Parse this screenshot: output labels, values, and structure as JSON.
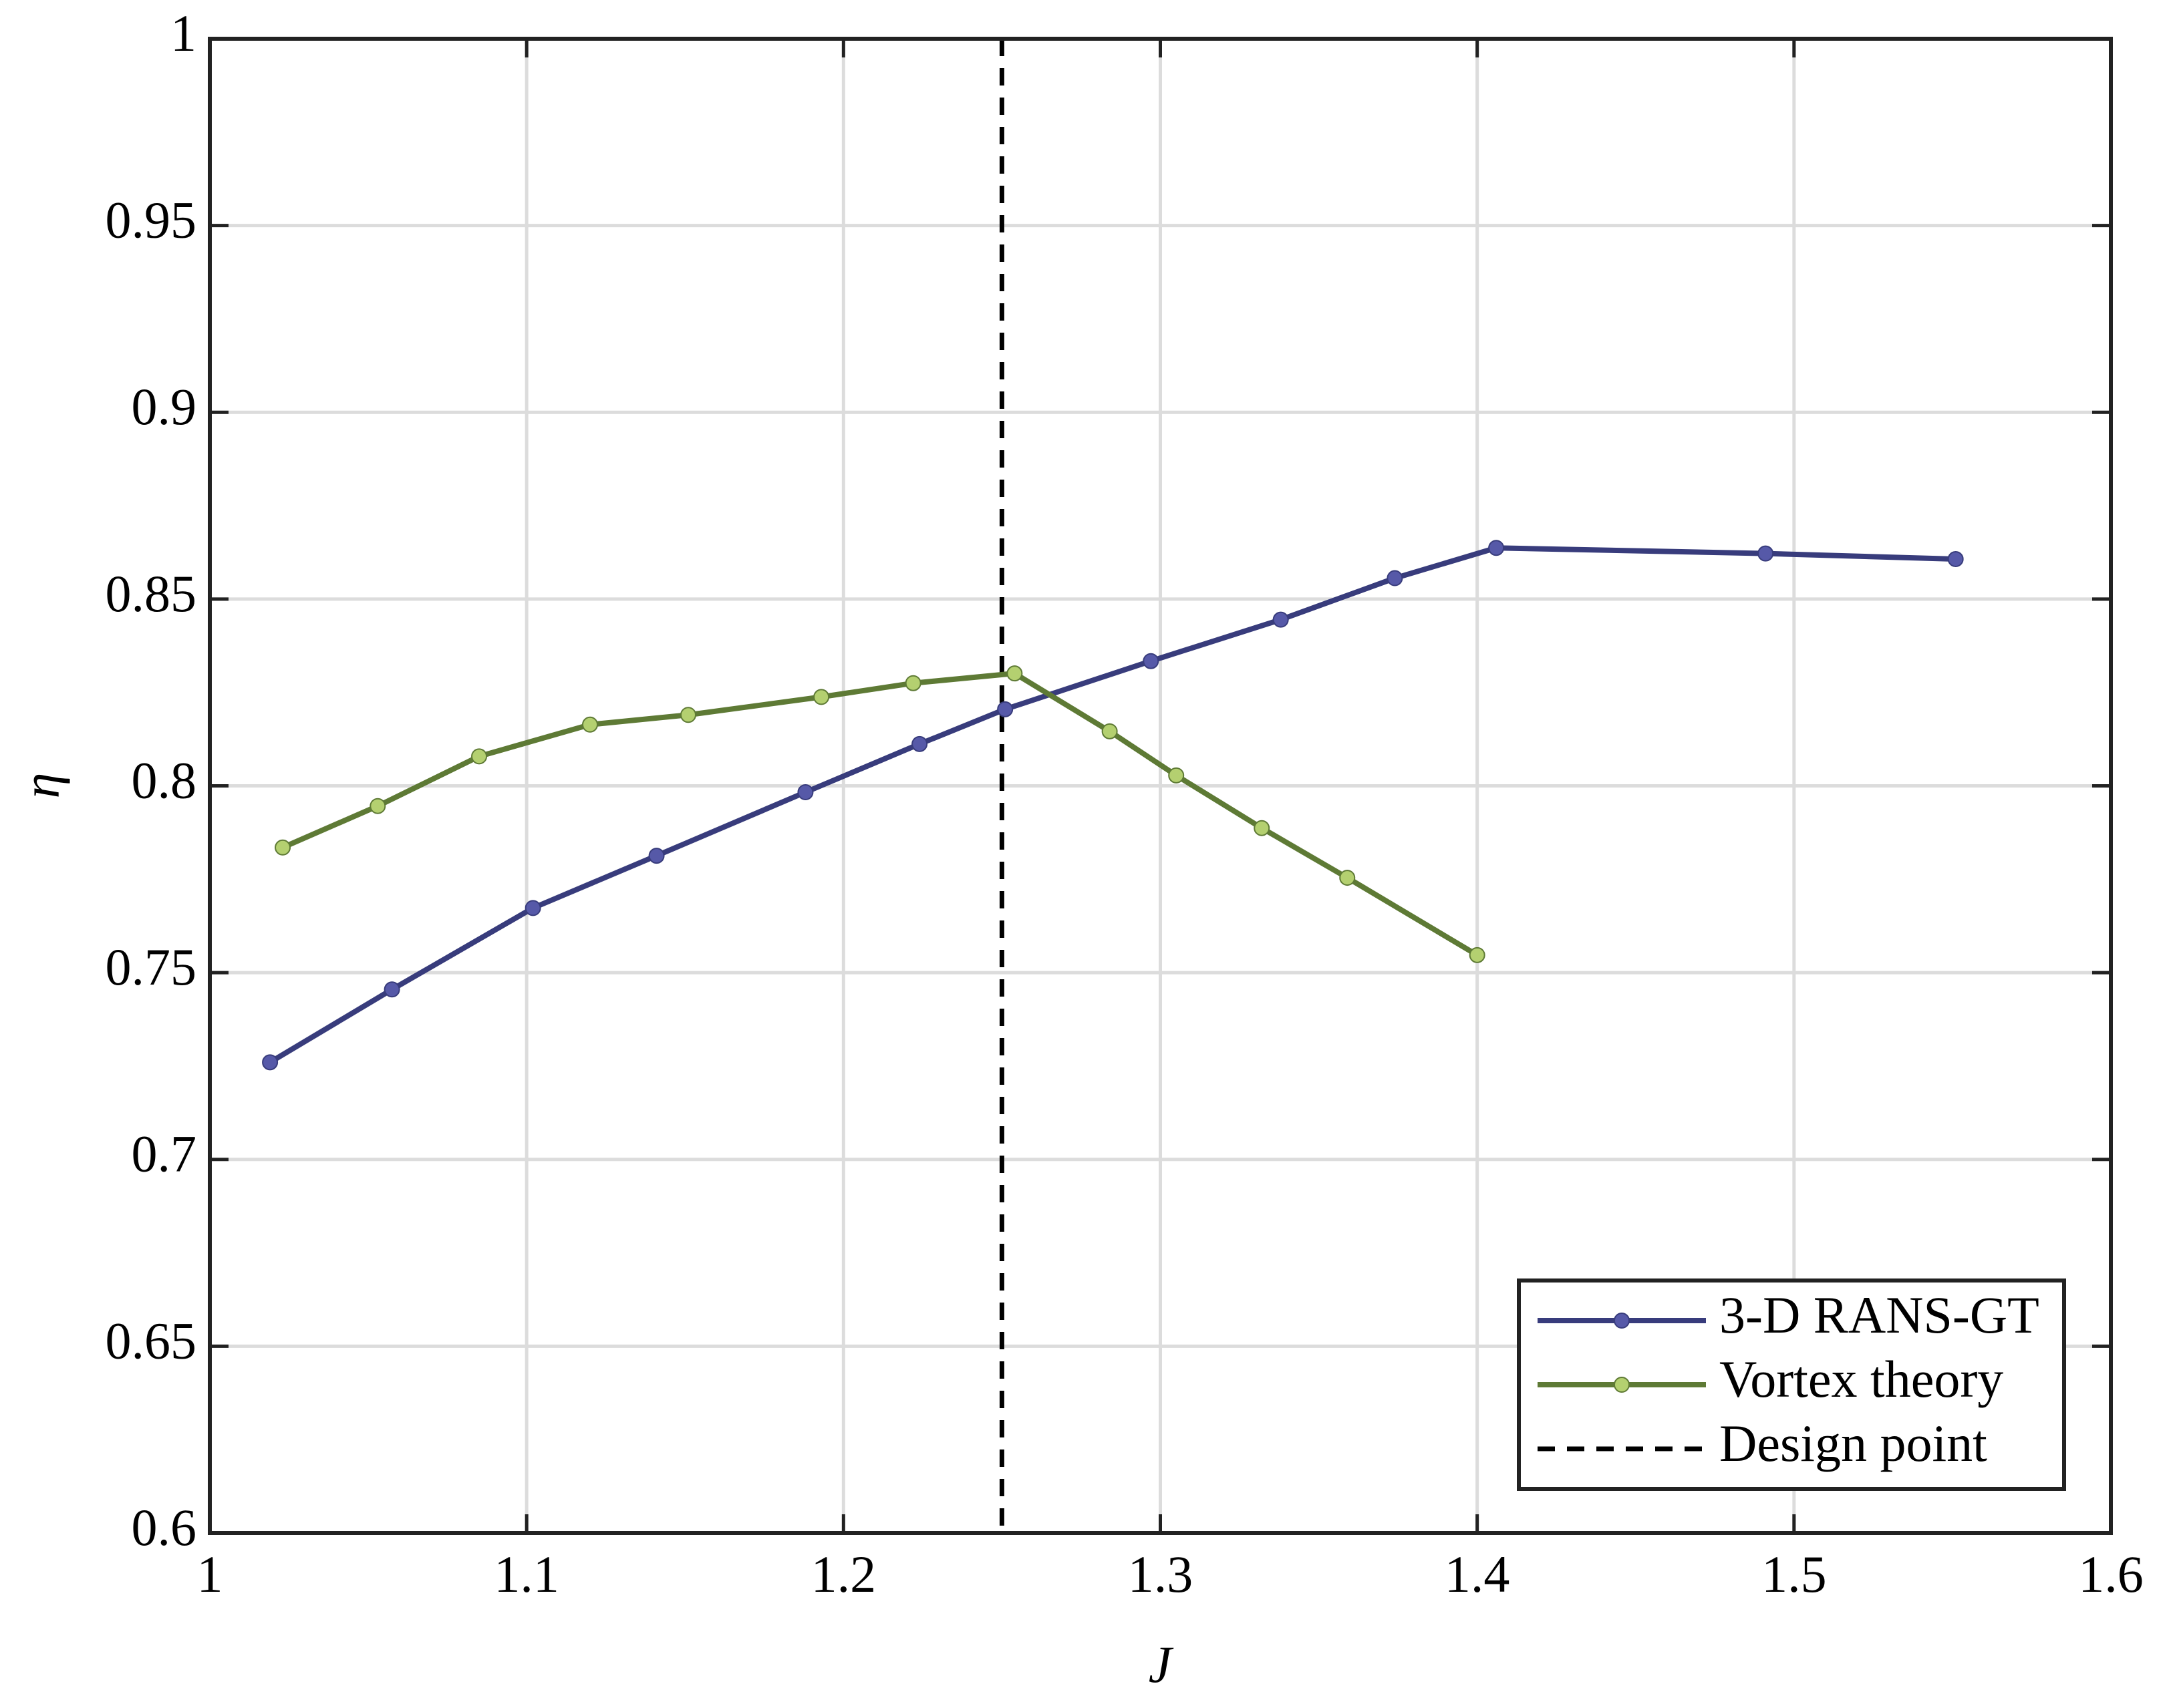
{
  "chart_data": {
    "type": "line",
    "xlabel": "J",
    "ylabel": "η",
    "xlim": [
      1,
      1.6
    ],
    "ylim": [
      0.6,
      1
    ],
    "xticks": [
      1,
      1.1,
      1.2,
      1.3,
      1.4,
      1.5,
      1.6
    ],
    "yticks": [
      0.6,
      0.65,
      0.7,
      0.75,
      0.8,
      0.85,
      0.9,
      0.95,
      1
    ],
    "grid": true,
    "legend": "lower right",
    "series": [
      {
        "name": "3-D RANS-GT",
        "color": "#383c7c",
        "marker_color": "#5659a8",
        "x": [
          1.019,
          1.0575,
          1.102,
          1.141,
          1.188,
          1.224,
          1.251,
          1.297,
          1.338,
          1.374,
          1.406,
          1.491,
          1.551
        ],
        "values": [
          0.726,
          0.7455,
          0.7673,
          0.7813,
          0.7983,
          0.8112,
          0.8205,
          0.8334,
          0.8445,
          0.8556,
          0.8637,
          0.8622,
          0.8607
        ]
      },
      {
        "name": "Vortex theory",
        "color": "#5e7a35",
        "marker_color": "#b4d070",
        "x": [
          1.023,
          1.053,
          1.085,
          1.12,
          1.151,
          1.193,
          1.222,
          1.254,
          1.284,
          1.305,
          1.332,
          1.359,
          1.4
        ],
        "values": [
          0.7835,
          0.7946,
          0.8079,
          0.8164,
          0.819,
          0.8238,
          0.8275,
          0.8301,
          0.8146,
          0.8028,
          0.7887,
          0.7754,
          0.7547
        ]
      }
    ],
    "reference_line": {
      "name": "Design point",
      "x": 1.25,
      "color": "#000000",
      "style": "dashed"
    }
  }
}
